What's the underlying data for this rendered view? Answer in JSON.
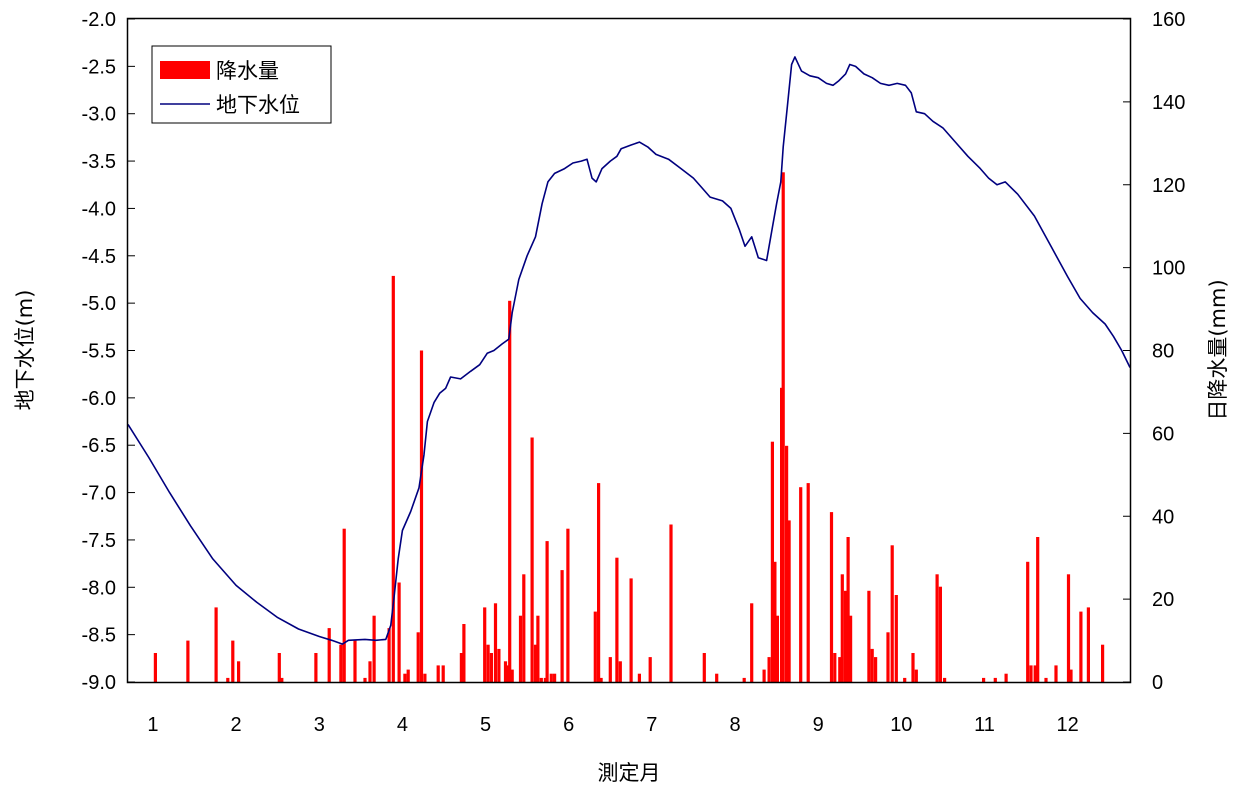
{
  "chart_data": {
    "type": "bar+line",
    "xlabel": "測定月",
    "ylabel_left": "地下水位(m)",
    "ylabel_right": "日降水量(mm)",
    "x_ticks": [
      "1",
      "2",
      "3",
      "4",
      "5",
      "6",
      "7",
      "8",
      "9",
      "10",
      "11",
      "12"
    ],
    "x_tick_months": [
      1,
      2,
      3,
      4,
      5,
      6,
      7,
      8,
      9,
      10,
      11,
      12
    ],
    "xlim": [
      0.7,
      12.75
    ],
    "ylim_left": [
      -9.0,
      -2.0
    ],
    "yticks_left": [
      "-2.0",
      "-2.5",
      "-3.0",
      "-3.5",
      "-4.0",
      "-4.5",
      "-5.0",
      "-5.5",
      "-6.0",
      "-6.5",
      "-7.0",
      "-7.5",
      "-8.0",
      "-8.5",
      "-9.0"
    ],
    "ylim_right": [
      0,
      160
    ],
    "yticks_right": [
      "0",
      "20",
      "40",
      "60",
      "80",
      "100",
      "120",
      "140",
      "160"
    ],
    "legend_position": "top-left",
    "series": [
      {
        "name": "降水量",
        "type": "bar",
        "axis": "right",
        "color": "#ff0000",
        "points": [
          [
            1.03,
            7
          ],
          [
            1.42,
            10
          ],
          [
            1.76,
            18
          ],
          [
            1.9,
            1
          ],
          [
            1.96,
            10
          ],
          [
            2.03,
            5
          ],
          [
            2.52,
            7
          ],
          [
            2.55,
            1
          ],
          [
            2.96,
            7
          ],
          [
            3.12,
            13
          ],
          [
            3.26,
            9
          ],
          [
            3.3,
            37
          ],
          [
            3.43,
            10
          ],
          [
            3.55,
            1
          ],
          [
            3.61,
            5
          ],
          [
            3.66,
            16
          ],
          [
            3.84,
            13
          ],
          [
            3.89,
            98
          ],
          [
            3.96,
            24
          ],
          [
            4.03,
            2
          ],
          [
            4.07,
            3
          ],
          [
            4.19,
            12
          ],
          [
            4.23,
            80
          ],
          [
            4.27,
            2
          ],
          [
            4.43,
            4
          ],
          [
            4.49,
            4
          ],
          [
            4.71,
            7
          ],
          [
            4.74,
            14
          ],
          [
            4.99,
            18
          ],
          [
            5.03,
            9
          ],
          [
            5.07,
            7
          ],
          [
            5.12,
            19
          ],
          [
            5.16,
            8
          ],
          [
            5.24,
            5
          ],
          [
            5.26,
            4
          ],
          [
            5.29,
            92
          ],
          [
            5.32,
            3
          ],
          [
            5.42,
            16
          ],
          [
            5.46,
            26
          ],
          [
            5.56,
            59
          ],
          [
            5.6,
            9
          ],
          [
            5.63,
            16
          ],
          [
            5.67,
            1
          ],
          [
            5.72,
            1
          ],
          [
            5.74,
            34
          ],
          [
            5.79,
            2
          ],
          [
            5.83,
            2
          ],
          [
            5.92,
            27
          ],
          [
            5.99,
            37
          ],
          [
            6.32,
            17
          ],
          [
            6.36,
            48
          ],
          [
            6.39,
            1
          ],
          [
            6.5,
            6
          ],
          [
            6.58,
            30
          ],
          [
            6.62,
            5
          ],
          [
            6.75,
            25
          ],
          [
            6.85,
            2
          ],
          [
            6.98,
            6
          ],
          [
            7.23,
            38
          ],
          [
            7.63,
            7
          ],
          [
            7.78,
            2
          ],
          [
            8.11,
            1
          ],
          [
            8.2,
            19
          ],
          [
            8.35,
            3
          ],
          [
            8.41,
            6
          ],
          [
            8.45,
            58
          ],
          [
            8.48,
            29
          ],
          [
            8.51,
            16
          ],
          [
            8.56,
            71
          ],
          [
            8.58,
            123
          ],
          [
            8.62,
            57
          ],
          [
            8.65,
            39
          ],
          [
            8.79,
            47
          ],
          [
            8.88,
            48
          ],
          [
            9.16,
            41
          ],
          [
            9.2,
            7
          ],
          [
            9.26,
            6
          ],
          [
            9.29,
            26
          ],
          [
            9.33,
            22
          ],
          [
            9.36,
            35
          ],
          [
            9.39,
            16
          ],
          [
            9.61,
            22
          ],
          [
            9.65,
            8
          ],
          [
            9.69,
            6
          ],
          [
            9.84,
            12
          ],
          [
            9.89,
            33
          ],
          [
            9.94,
            21
          ],
          [
            10.04,
            1
          ],
          [
            10.14,
            7
          ],
          [
            10.18,
            3
          ],
          [
            10.43,
            26
          ],
          [
            10.47,
            23
          ],
          [
            10.52,
            1
          ],
          [
            10.99,
            1
          ],
          [
            11.13,
            1
          ],
          [
            11.26,
            2
          ],
          [
            11.52,
            29
          ],
          [
            11.56,
            4
          ],
          [
            11.61,
            4
          ],
          [
            11.64,
            35
          ],
          [
            11.74,
            1
          ],
          [
            11.86,
            4
          ],
          [
            12.01,
            26
          ],
          [
            12.04,
            3
          ],
          [
            12.16,
            17
          ],
          [
            12.25,
            18
          ],
          [
            12.42,
            9
          ]
        ]
      },
      {
        "name": "地下水位",
        "type": "line",
        "axis": "left",
        "color": "#00007f",
        "points": [
          [
            0.7,
            -6.28
          ],
          [
            0.95,
            -6.63
          ],
          [
            1.2,
            -7.0
          ],
          [
            1.45,
            -7.35
          ],
          [
            1.72,
            -7.7
          ],
          [
            2.0,
            -7.98
          ],
          [
            2.25,
            -8.16
          ],
          [
            2.5,
            -8.32
          ],
          [
            2.75,
            -8.44
          ],
          [
            3.0,
            -8.52
          ],
          [
            3.15,
            -8.56
          ],
          [
            3.28,
            -8.6
          ],
          [
            3.35,
            -8.56
          ],
          [
            3.55,
            -8.55
          ],
          [
            3.68,
            -8.56
          ],
          [
            3.8,
            -8.55
          ],
          [
            3.86,
            -8.4
          ],
          [
            3.9,
            -8.1
          ],
          [
            3.95,
            -7.7
          ],
          [
            4.0,
            -7.4
          ],
          [
            4.1,
            -7.2
          ],
          [
            4.2,
            -6.95
          ],
          [
            4.26,
            -6.6
          ],
          [
            4.3,
            -6.25
          ],
          [
            4.38,
            -6.05
          ],
          [
            4.45,
            -5.95
          ],
          [
            4.52,
            -5.9
          ],
          [
            4.58,
            -5.78
          ],
          [
            4.7,
            -5.8
          ],
          [
            4.82,
            -5.72
          ],
          [
            4.93,
            -5.65
          ],
          [
            5.02,
            -5.53
          ],
          [
            5.1,
            -5.5
          ],
          [
            5.2,
            -5.43
          ],
          [
            5.28,
            -5.38
          ],
          [
            5.32,
            -5.1
          ],
          [
            5.4,
            -4.75
          ],
          [
            5.5,
            -4.5
          ],
          [
            5.6,
            -4.3
          ],
          [
            5.68,
            -3.95
          ],
          [
            5.75,
            -3.72
          ],
          [
            5.83,
            -3.63
          ],
          [
            5.95,
            -3.58
          ],
          [
            6.05,
            -3.52
          ],
          [
            6.15,
            -3.5
          ],
          [
            6.22,
            -3.48
          ],
          [
            6.28,
            -3.68
          ],
          [
            6.33,
            -3.72
          ],
          [
            6.4,
            -3.58
          ],
          [
            6.5,
            -3.5
          ],
          [
            6.58,
            -3.45
          ],
          [
            6.63,
            -3.37
          ],
          [
            6.75,
            -3.33
          ],
          [
            6.85,
            -3.3
          ],
          [
            6.95,
            -3.35
          ],
          [
            7.05,
            -3.43
          ],
          [
            7.2,
            -3.48
          ],
          [
            7.35,
            -3.58
          ],
          [
            7.5,
            -3.68
          ],
          [
            7.6,
            -3.78
          ],
          [
            7.7,
            -3.88
          ],
          [
            7.85,
            -3.92
          ],
          [
            7.95,
            -4.0
          ],
          [
            8.05,
            -4.22
          ],
          [
            8.12,
            -4.4
          ],
          [
            8.2,
            -4.3
          ],
          [
            8.28,
            -4.52
          ],
          [
            8.38,
            -4.55
          ],
          [
            8.45,
            -4.2
          ],
          [
            8.5,
            -3.95
          ],
          [
            8.55,
            -3.72
          ],
          [
            8.58,
            -3.35
          ],
          [
            8.63,
            -2.92
          ],
          [
            8.68,
            -2.48
          ],
          [
            8.72,
            -2.4
          ],
          [
            8.8,
            -2.55
          ],
          [
            8.9,
            -2.6
          ],
          [
            9.0,
            -2.62
          ],
          [
            9.1,
            -2.68
          ],
          [
            9.18,
            -2.7
          ],
          [
            9.25,
            -2.65
          ],
          [
            9.33,
            -2.58
          ],
          [
            9.38,
            -2.48
          ],
          [
            9.45,
            -2.5
          ],
          [
            9.55,
            -2.58
          ],
          [
            9.65,
            -2.62
          ],
          [
            9.75,
            -2.68
          ],
          [
            9.85,
            -2.7
          ],
          [
            9.95,
            -2.68
          ],
          [
            10.05,
            -2.7
          ],
          [
            10.12,
            -2.78
          ],
          [
            10.18,
            -2.98
          ],
          [
            10.28,
            -3.0
          ],
          [
            10.38,
            -3.08
          ],
          [
            10.5,
            -3.15
          ],
          [
            10.65,
            -3.3
          ],
          [
            10.8,
            -3.45
          ],
          [
            10.95,
            -3.58
          ],
          [
            11.05,
            -3.68
          ],
          [
            11.15,
            -3.75
          ],
          [
            11.25,
            -3.72
          ],
          [
            11.4,
            -3.85
          ],
          [
            11.6,
            -4.08
          ],
          [
            11.8,
            -4.4
          ],
          [
            12.0,
            -4.72
          ],
          [
            12.15,
            -4.95
          ],
          [
            12.3,
            -5.1
          ],
          [
            12.45,
            -5.22
          ],
          [
            12.55,
            -5.35
          ],
          [
            12.65,
            -5.5
          ],
          [
            12.75,
            -5.68
          ]
        ]
      }
    ]
  }
}
